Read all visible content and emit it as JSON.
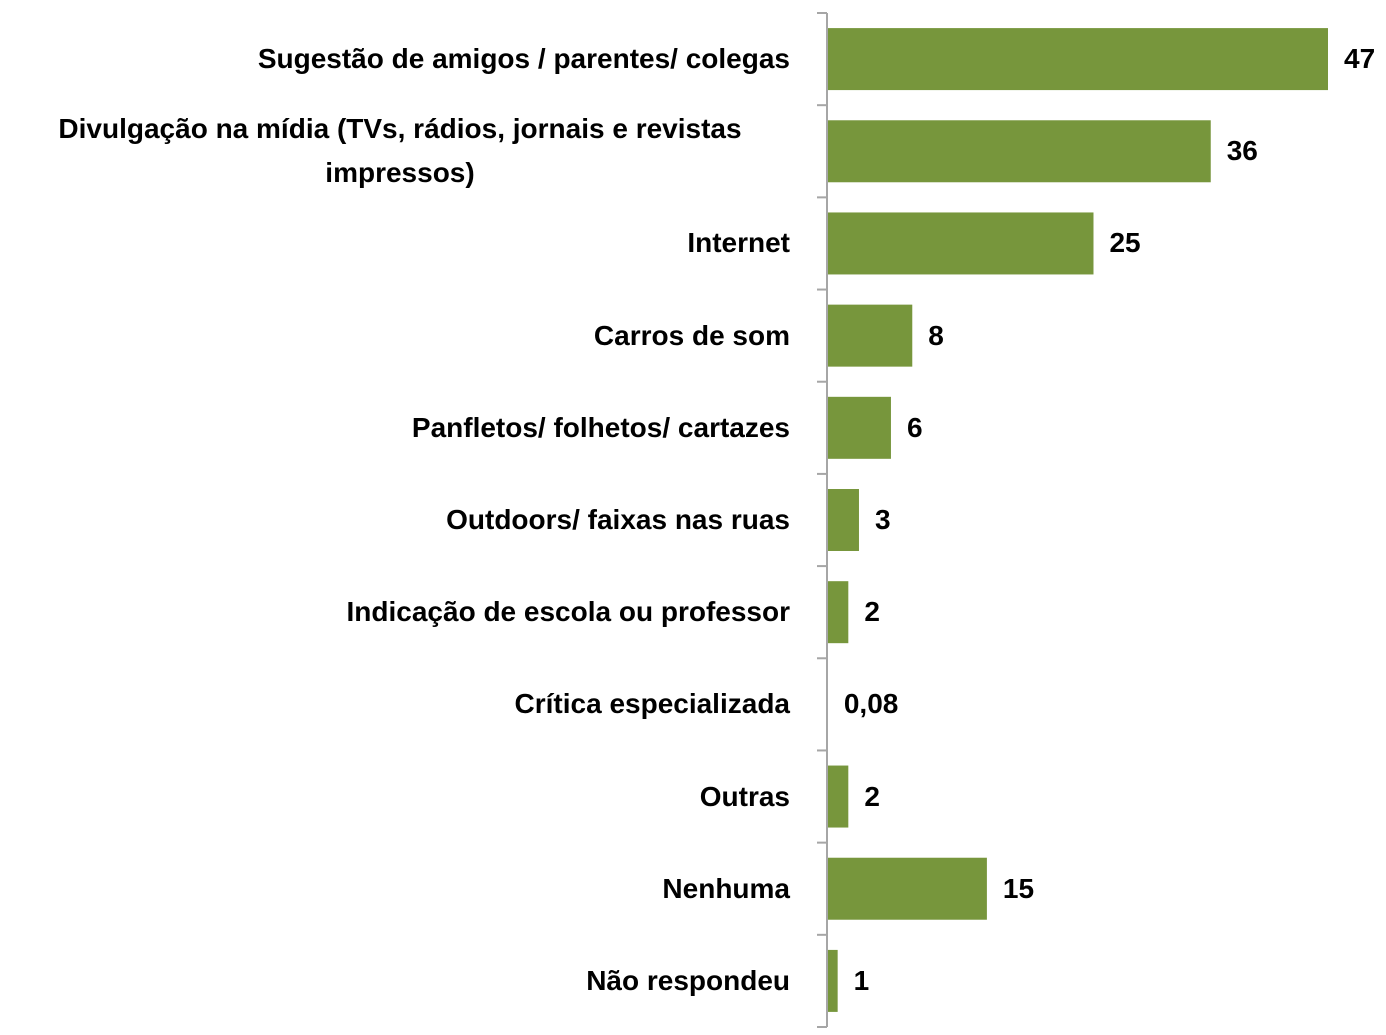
{
  "chart_data": {
    "type": "bar",
    "orientation": "horizontal",
    "categories": [
      "Sugestão de amigos / parentes/ colegas",
      "Divulgação na mídia (TVs, rádios, jornais e revistas impressos)",
      "Internet",
      "Carros de som",
      "Panfletos/ folhetos/ cartazes",
      "Outdoors/ faixas nas ruas",
      "Indicação de escola ou professor",
      "Crítica especializada",
      "Outras",
      "Nenhuma",
      "Não respondeu"
    ],
    "values": [
      47,
      36,
      25,
      8,
      6,
      3,
      2,
      0.08,
      2,
      15,
      1
    ],
    "value_labels": [
      "47",
      "36",
      "25",
      "8",
      "6",
      "3",
      "2",
      "0,08",
      "2",
      "15",
      "1"
    ],
    "color": "#77963c"
  }
}
